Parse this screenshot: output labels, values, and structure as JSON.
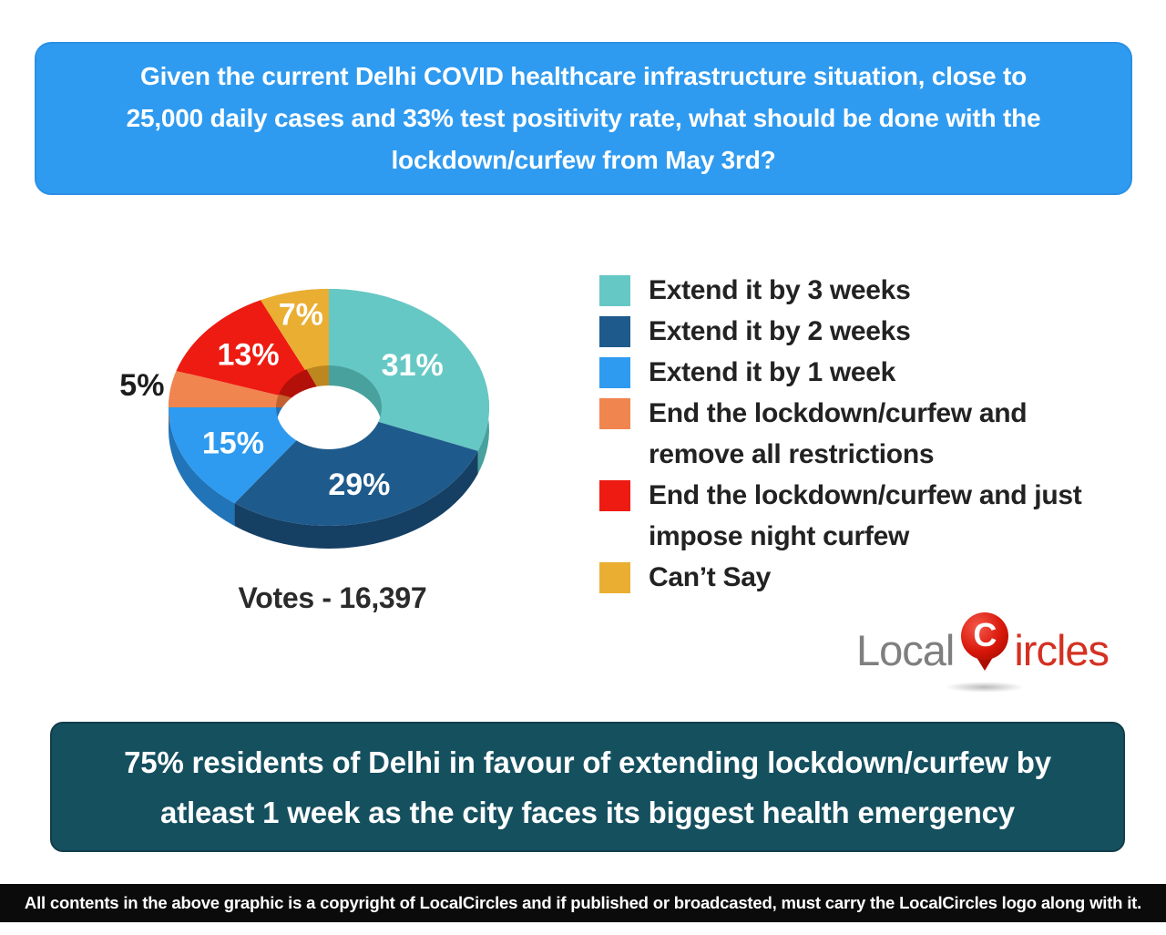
{
  "question": {
    "lines": [
      "Given the current Delhi COVID healthcare infrastructure situation, close to",
      "25,000 daily cases and 33% test positivity rate, what should be done with the",
      "lockdown/curfew from May 3rd?"
    ]
  },
  "chart_data": {
    "type": "pie",
    "subtype": "3d-donut",
    "title": "Given the current Delhi COVID healthcare infrastructure situation, close to 25,000 daily cases and 33% test positivity rate, what should be done with the lockdown/curfew from May 3rd?",
    "votes_label": "Votes - 16,397",
    "total_votes": 16397,
    "start_angle_deg": 0,
    "direction": "clockwise",
    "legend_position": "right",
    "slices": [
      {
        "label": "Extend it by 3 weeks",
        "value": 31,
        "pct_label": "31%",
        "color": "#66c8c4",
        "dark_color": "#49a19d",
        "label_inside": true,
        "label_color": "#ffffff"
      },
      {
        "label": "Extend it by 2 weeks",
        "value": 29,
        "pct_label": "29%",
        "color": "#1e5b8c",
        "dark_color": "#153f63",
        "label_inside": true,
        "label_color": "#ffffff"
      },
      {
        "label": "Extend it by 1 week",
        "value": 15,
        "pct_label": "15%",
        "color": "#2e9bf0",
        "dark_color": "#2174b8",
        "label_inside": true,
        "label_color": "#ffffff"
      },
      {
        "label": "End the lockdown/curfew and remove all restrictions",
        "value": 5,
        "pct_label": "5%",
        "color": "#f0854f",
        "dark_color": "#c4602f",
        "label_inside": false,
        "label_color": "#1c1c1c"
      },
      {
        "label": "End the lockdown/curfew and just impose night curfew",
        "value": 13,
        "pct_label": "13%",
        "color": "#ee1b12",
        "dark_color": "#b31009",
        "label_inside": true,
        "label_color": "#ffffff"
      },
      {
        "label": "Can’t Say",
        "value": 7,
        "pct_label": "7%",
        "color": "#eaae33",
        "dark_color": "#bd871f",
        "label_inside": true,
        "label_color": "#ffffff"
      }
    ]
  },
  "logo": {
    "part1": "Local",
    "pin_letter": "C",
    "part2": "ircles"
  },
  "summary": {
    "lines": [
      "75% residents of Delhi in favour of extending lockdown/curfew by",
      "atleast 1 week as the city faces its biggest health emergency"
    ]
  },
  "footer": {
    "text": "All contents in the above graphic is a copyright of LocalCircles and if published or broadcasted, must carry the LocalCircles logo along with it."
  }
}
